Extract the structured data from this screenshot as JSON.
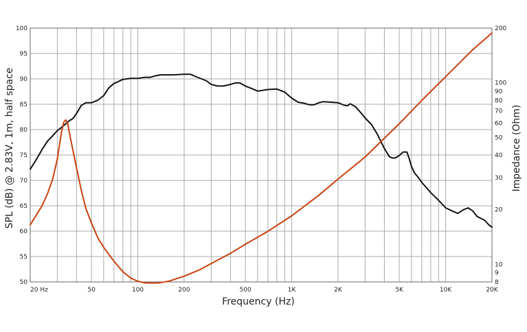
{
  "chart_data": {
    "type": "line",
    "title": "",
    "xlabel": "Frequency (Hz)",
    "ylabel": "SPL (dB) @ 2.83V, 1m, half space",
    "y2label": "Impedance (Ohm)",
    "xscale": "log",
    "xlim": [
      20,
      20000
    ],
    "ylim": [
      50,
      100
    ],
    "y2scale": "log",
    "y2lim": [
      8,
      200
    ],
    "grid": true,
    "x_tick_labels": [
      {
        "value": 20,
        "label": "20 Hz"
      },
      {
        "value": 50,
        "label": "50"
      },
      {
        "value": 100,
        "label": "100"
      },
      {
        "value": 200,
        "label": "200"
      },
      {
        "value": 500,
        "label": "500"
      },
      {
        "value": 1000,
        "label": "1K"
      },
      {
        "value": 2000,
        "label": "2K"
      },
      {
        "value": 5000,
        "label": "5K"
      },
      {
        "value": 10000,
        "label": "10K"
      },
      {
        "value": 20000,
        "label": "20K"
      }
    ],
    "y_tick_labels": [
      "50",
      "55",
      "60",
      "65",
      "70",
      "75",
      "80",
      "85",
      "90",
      "95",
      "100"
    ],
    "y2_tick_labels": [
      {
        "value": 8,
        "label": "8"
      },
      {
        "value": 9,
        "label": "9"
      },
      {
        "value": 10,
        "label": "10"
      },
      {
        "value": 20,
        "label": "20"
      },
      {
        "value": 30,
        "label": "30"
      },
      {
        "value": 40,
        "label": "40"
      },
      {
        "value": 50,
        "label": "50"
      },
      {
        "value": 60,
        "label": "60"
      },
      {
        "value": 70,
        "label": "70"
      },
      {
        "value": 80,
        "label": "80"
      },
      {
        "value": 90,
        "label": "90"
      },
      {
        "value": 100,
        "label": "100"
      },
      {
        "value": 200,
        "label": "200"
      }
    ],
    "series": [
      {
        "axis": "left",
        "color": "#111111",
        "x": [
          20,
          22,
          24,
          26,
          28,
          30,
          33,
          36,
          38,
          40,
          43,
          46,
          50,
          55,
          60,
          65,
          70,
          75,
          80,
          90,
          100,
          110,
          120,
          130,
          140,
          150,
          170,
          200,
          220,
          240,
          260,
          280,
          300,
          330,
          360,
          400,
          430,
          460,
          500,
          550,
          600,
          700,
          800,
          900,
          1000,
          1100,
          1200,
          1300,
          1400,
          1500,
          1600,
          1800,
          2000,
          2200,
          2300,
          2400,
          2600,
          2800,
          3000,
          3300,
          3600,
          4000,
          4300,
          4500,
          4700,
          5000,
          5300,
          5600,
          5800,
          6000,
          6300,
          6600,
          7000,
          8000,
          9000,
          10000,
          11000,
          12000,
          13000,
          14000,
          15000,
          16000,
          17000,
          18000,
          19000,
          20000
        ],
        "y": [
          72.2,
          74.2,
          76.2,
          77.8,
          78.8,
          79.8,
          80.8,
          81.8,
          82.2,
          83.2,
          84.8,
          85.3,
          85.3,
          85.8,
          86.7,
          88.3,
          89.1,
          89.5,
          89.9,
          90.1,
          90.1,
          90.3,
          90.3,
          90.6,
          90.8,
          90.8,
          90.8,
          90.9,
          90.9,
          90.4,
          90.0,
          89.6,
          88.9,
          88.6,
          88.6,
          88.9,
          89.2,
          89.2,
          88.6,
          88.1,
          87.6,
          87.9,
          88.0,
          87.4,
          86.2,
          85.4,
          85.2,
          84.9,
          84.9,
          85.3,
          85.5,
          85.4,
          85.3,
          84.8,
          84.7,
          85.1,
          84.5,
          83.4,
          82.3,
          81.0,
          79.1,
          76.3,
          74.7,
          74.4,
          74.4,
          74.9,
          75.6,
          75.6,
          74.3,
          72.7,
          71.4,
          70.7,
          69.6,
          67.6,
          66.1,
          64.6,
          64.0,
          63.5,
          64.2,
          64.6,
          64.0,
          62.9,
          62.5,
          62.1,
          61.3,
          60.8
        ]
      },
      {
        "axis": "right",
        "color": "#c8400e",
        "x": [
          20,
          22,
          24,
          26,
          28,
          30,
          32,
          33,
          34,
          35,
          36,
          38,
          40,
          43,
          46,
          50,
          55,
          60,
          65,
          70,
          80,
          90,
          100,
          110,
          120,
          130,
          140,
          160,
          200,
          250,
          300,
          400,
          500,
          700,
          1000,
          1500,
          2000,
          3000,
          5000,
          7000,
          10000,
          15000,
          20000
        ],
        "y": [
          16.5,
          18.8,
          21.2,
          24.7,
          29.5,
          38.0,
          54.0,
          60.5,
          62.5,
          60.0,
          52.5,
          42.0,
          34.0,
          25.4,
          20.3,
          16.9,
          14.0,
          12.4,
          11.3,
          10.4,
          9.1,
          8.4,
          8.07,
          7.92,
          7.89,
          7.89,
          7.92,
          8.09,
          8.6,
          9.3,
          10.1,
          11.5,
          12.9,
          15.2,
          18.5,
          24.0,
          29.5,
          39.0,
          59.5,
          80.0,
          108.0,
          152.0,
          188.0
        ]
      }
    ]
  }
}
